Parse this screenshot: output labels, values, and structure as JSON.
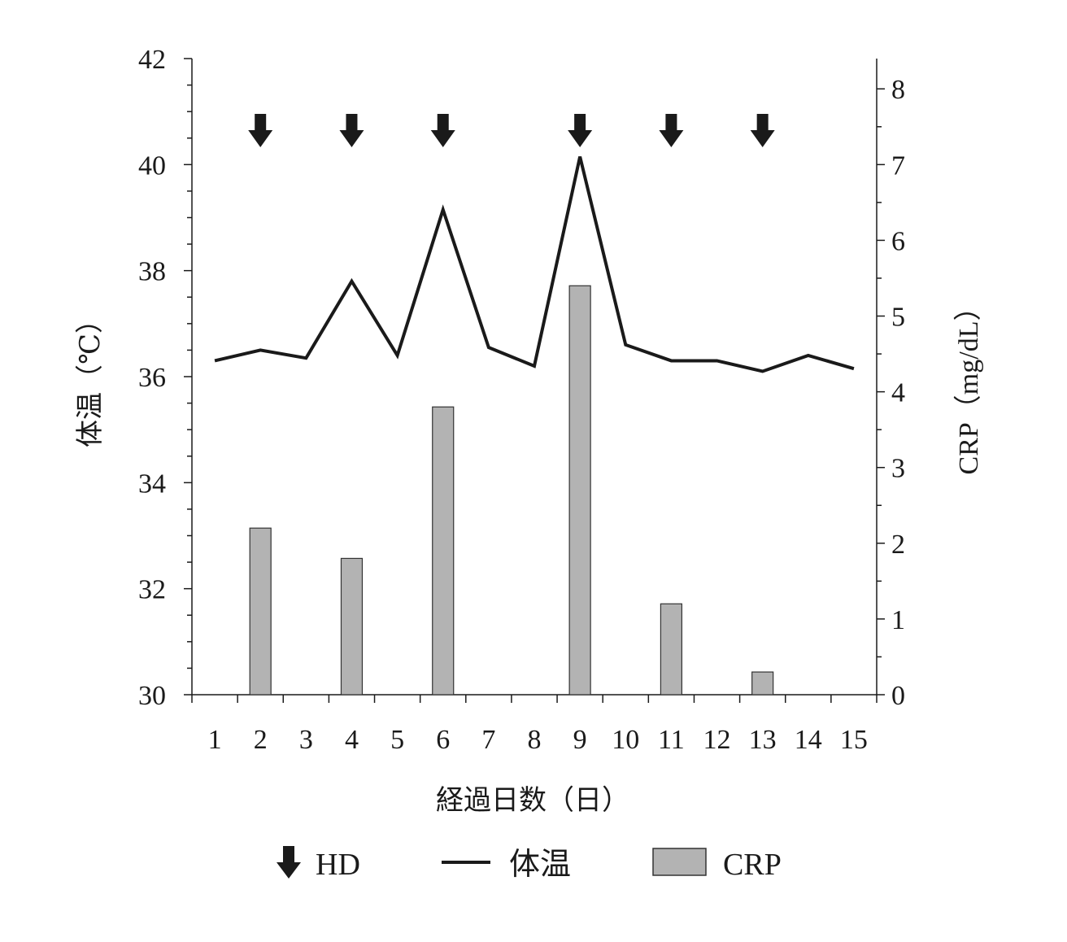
{
  "chart_data": {
    "type": "bar+line",
    "xlabel": "経過日数（日）",
    "ylabel_left": "体温（℃）",
    "ylabel_right": "CRP（mg/dL）",
    "x": [
      1,
      2,
      3,
      4,
      5,
      6,
      7,
      8,
      9,
      10,
      11,
      12,
      13,
      14,
      15
    ],
    "x_tick_labels": [
      "1",
      "2",
      "3",
      "4",
      "5",
      "6",
      "7",
      "8",
      "9",
      "10",
      "11",
      "12",
      "13",
      "14",
      "15"
    ],
    "ylim_left": [
      30,
      42
    ],
    "yticks_left": [
      "30",
      "32",
      "34",
      "36",
      "38",
      "40",
      "42"
    ],
    "ylim_right": [
      0,
      8.4
    ],
    "yticks_right": [
      "0",
      "1",
      "2",
      "3",
      "4",
      "5",
      "6",
      "7",
      "8"
    ],
    "series": [
      {
        "name": "体温",
        "type": "line",
        "axis": "left",
        "values": [
          36.3,
          36.5,
          36.35,
          37.8,
          36.4,
          39.15,
          36.55,
          36.2,
          40.15,
          36.6,
          36.3,
          36.3,
          36.1,
          36.4,
          36.15
        ]
      },
      {
        "name": "CRP",
        "type": "bar",
        "axis": "right",
        "values": [
          null,
          2.2,
          null,
          1.8,
          null,
          3.8,
          null,
          null,
          5.4,
          null,
          1.2,
          null,
          0.3,
          null,
          null
        ]
      },
      {
        "name": "HD",
        "type": "event-arrow",
        "days": [
          2,
          4,
          6,
          9,
          11,
          13
        ]
      }
    ],
    "legend": {
      "position": "bottom",
      "items": [
        "HD",
        "体温",
        "CRP"
      ]
    },
    "colors": {
      "line": "#1a1a1a",
      "bar": "#b3b3b3",
      "bar_edge": "#333333",
      "arrow": "#1a1a1a"
    },
    "grid": false
  }
}
